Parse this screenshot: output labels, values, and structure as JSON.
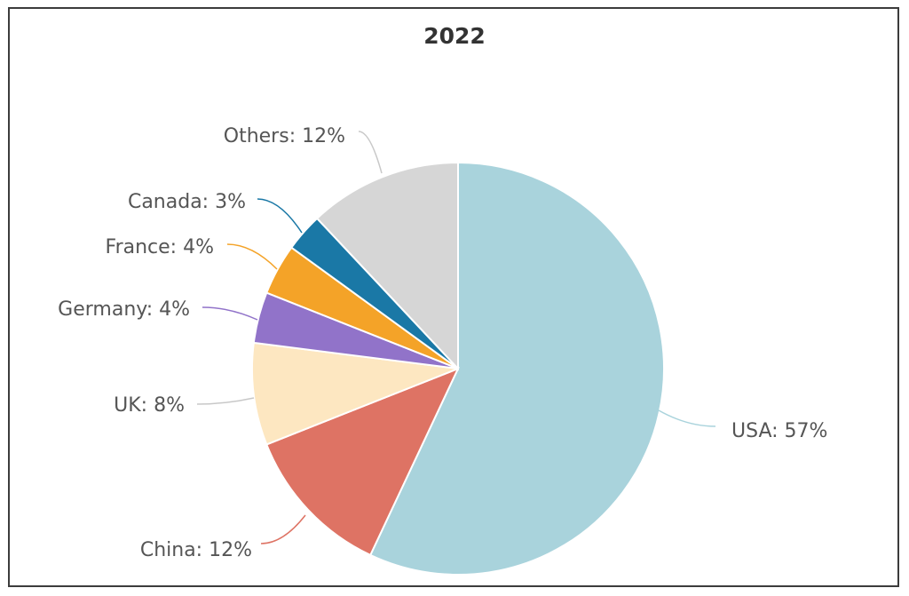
{
  "chart_data": {
    "type": "pie",
    "title": "2022",
    "slices": [
      {
        "label": "USA: 57%",
        "name": "USA",
        "value": 57,
        "color": "#a9d3dc"
      },
      {
        "label": "China: 12%",
        "name": "China",
        "value": 12,
        "color": "#de7364"
      },
      {
        "label": "UK: 8%",
        "name": "UK",
        "value": 8,
        "color": "#fde7c1"
      },
      {
        "label": "Germany: 4%",
        "name": "Germany",
        "value": 4,
        "color": "#9173c9"
      },
      {
        "label": "France: 4%",
        "name": "France",
        "value": 4,
        "color": "#f4a328"
      },
      {
        "label": "Canada: 3%",
        "name": "Canada",
        "value": 3,
        "color": "#1a78a6"
      },
      {
        "label": "Others: 12%",
        "name": "Others",
        "value": 12,
        "color": "#d6d6d6"
      }
    ],
    "start": "top",
    "direction": "clockwise",
    "legend": "none"
  }
}
